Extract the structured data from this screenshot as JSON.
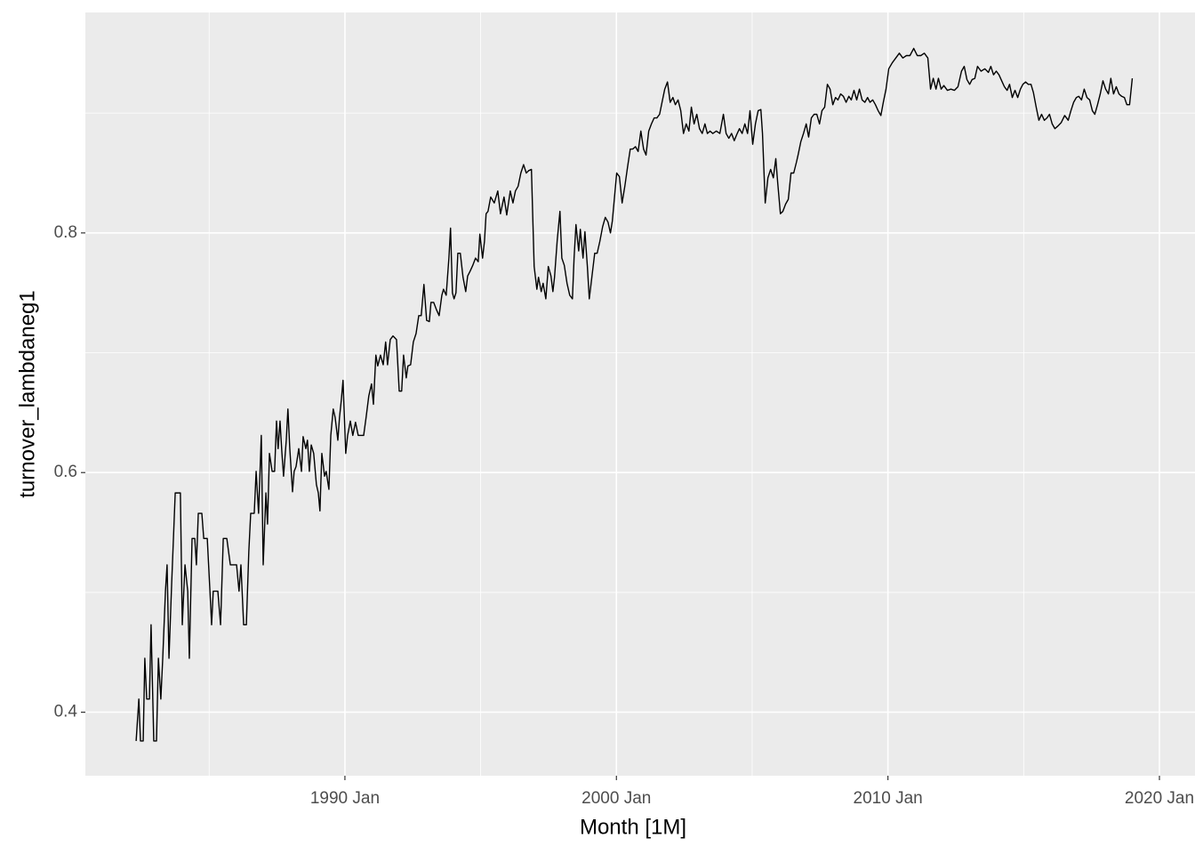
{
  "chart_data": {
    "type": "line",
    "x_label": "Month [1M]",
    "y_label": "turnover_lambdaneg1",
    "color": "#000000",
    "grid": true,
    "xlim": [
      1980.44,
      2021.31
    ],
    "ylim": [
      0.347,
      0.984
    ],
    "xticks": [
      {
        "value": 1990,
        "label": "1990 Jan"
      },
      {
        "value": 2000,
        "label": "2000 Jan"
      },
      {
        "value": 2010,
        "label": "2010 Jan"
      },
      {
        "value": 2020,
        "label": "2020 Jan"
      }
    ],
    "yticks": [
      0.4,
      0.6,
      0.8
    ],
    "x_minor_grid": [
      1985,
      1995,
      2005,
      2015
    ],
    "y_minor_grid": [
      0.5,
      0.7,
      0.9
    ],
    "x": [
      1982.31,
      1982.41,
      1982.47,
      1982.57,
      1982.63,
      1982.7,
      1982.8,
      1982.86,
      1982.96,
      1983.06,
      1983.13,
      1983.22,
      1983.29,
      1983.39,
      1983.45,
      1983.52,
      1983.62,
      1983.75,
      1983.94,
      1984.01,
      1984.11,
      1984.21,
      1984.27,
      1984.37,
      1984.47,
      1984.53,
      1984.6,
      1984.73,
      1984.8,
      1984.93,
      1985.02,
      1985.09,
      1985.15,
      1985.32,
      1985.42,
      1985.52,
      1985.65,
      1985.78,
      1986.01,
      1986.1,
      1986.17,
      1986.27,
      1986.37,
      1986.46,
      1986.53,
      1986.66,
      1986.73,
      1986.82,
      1986.92,
      1986.99,
      1987.09,
      1987.15,
      1987.22,
      1987.32,
      1987.41,
      1987.48,
      1987.54,
      1987.61,
      1987.68,
      1987.74,
      1987.84,
      1987.9,
      1987.97,
      1988.07,
      1988.13,
      1988.2,
      1988.3,
      1988.4,
      1988.46,
      1988.56,
      1988.62,
      1988.69,
      1988.76,
      1988.85,
      1988.95,
      1989.02,
      1989.08,
      1989.15,
      1989.25,
      1989.31,
      1989.41,
      1989.48,
      1989.57,
      1989.64,
      1989.74,
      1989.8,
      1989.87,
      1989.93,
      1990.03,
      1990.1,
      1990.2,
      1990.29,
      1990.39,
      1990.49,
      1990.69,
      1990.78,
      1990.88,
      1990.98,
      1991.05,
      1991.14,
      1991.21,
      1991.31,
      1991.41,
      1991.5,
      1991.57,
      1991.67,
      1991.77,
      1991.9,
      1992.0,
      1992.09,
      1992.16,
      1992.26,
      1992.32,
      1992.42,
      1992.52,
      1992.62,
      1992.72,
      1992.81,
      1992.91,
      1993.01,
      1993.11,
      1993.17,
      1993.27,
      1993.37,
      1993.47,
      1993.57,
      1993.63,
      1993.73,
      1993.83,
      1993.89,
      1993.96,
      1994.02,
      1994.09,
      1994.16,
      1994.25,
      1994.35,
      1994.45,
      1994.52,
      1994.61,
      1994.71,
      1994.81,
      1994.91,
      1994.97,
      1995.07,
      1995.14,
      1995.2,
      1995.27,
      1995.37,
      1995.5,
      1995.63,
      1995.73,
      1995.86,
      1995.96,
      1996.09,
      1996.19,
      1996.28,
      1996.38,
      1996.48,
      1996.58,
      1996.68,
      1996.77,
      1996.87,
      1996.97,
      1997.07,
      1997.13,
      1997.23,
      1997.3,
      1997.4,
      1997.49,
      1997.59,
      1997.66,
      1997.72,
      1997.82,
      1997.92,
      1997.99,
      1998.08,
      1998.18,
      1998.28,
      1998.38,
      1998.44,
      1998.51,
      1998.61,
      1998.67,
      1998.77,
      1998.84,
      1998.93,
      1999.0,
      1999.1,
      1999.2,
      1999.29,
      1999.39,
      1999.49,
      1999.59,
      1999.69,
      1999.78,
      1999.85,
      1999.95,
      2000.01,
      2000.11,
      2000.21,
      2000.31,
      2000.41,
      2000.51,
      2000.6,
      2000.7,
      2000.8,
      2000.9,
      2001.0,
      2001.09,
      2001.19,
      2001.29,
      2001.39,
      2001.49,
      2001.59,
      2001.68,
      2001.78,
      2001.88,
      2001.98,
      2002.08,
      2002.17,
      2002.27,
      2002.37,
      2002.47,
      2002.57,
      2002.67,
      2002.76,
      2002.86,
      2002.96,
      2003.06,
      2003.16,
      2003.26,
      2003.35,
      2003.45,
      2003.55,
      2003.68,
      2003.81,
      2003.94,
      2004.04,
      2004.14,
      2004.24,
      2004.34,
      2004.43,
      2004.53,
      2004.63,
      2004.73,
      2004.83,
      2004.92,
      2005.02,
      2005.12,
      2005.22,
      2005.32,
      2005.38,
      2005.48,
      2005.58,
      2005.68,
      2005.78,
      2005.87,
      2005.94,
      2006.04,
      2006.13,
      2006.23,
      2006.33,
      2006.43,
      2006.53,
      2006.63,
      2006.69,
      2006.79,
      2006.89,
      2006.99,
      2007.08,
      2007.18,
      2007.28,
      2007.38,
      2007.48,
      2007.57,
      2007.67,
      2007.77,
      2007.87,
      2007.97,
      2008.07,
      2008.16,
      2008.26,
      2008.36,
      2008.46,
      2008.56,
      2008.65,
      2008.75,
      2008.85,
      2008.95,
      2009.05,
      2009.15,
      2009.25,
      2009.34,
      2009.44,
      2009.54,
      2009.64,
      2009.74,
      2009.83,
      2009.93,
      2010.03,
      2010.16,
      2010.29,
      2010.42,
      2010.55,
      2010.68,
      2010.81,
      2010.95,
      2011.08,
      2011.21,
      2011.34,
      2011.47,
      2011.57,
      2011.67,
      2011.77,
      2011.86,
      2011.96,
      2012.06,
      2012.19,
      2012.32,
      2012.45,
      2012.58,
      2012.71,
      2012.81,
      2012.91,
      2013.01,
      2013.1,
      2013.2,
      2013.3,
      2013.43,
      2013.57,
      2013.7,
      2013.79,
      2013.89,
      2013.99,
      2014.09,
      2014.19,
      2014.29,
      2014.39,
      2014.48,
      2014.58,
      2014.68,
      2014.78,
      2014.88,
      2014.97,
      2015.07,
      2015.17,
      2015.27,
      2015.36,
      2015.46,
      2015.56,
      2015.66,
      2015.76,
      2015.86,
      2015.95,
      2016.05,
      2016.15,
      2016.25,
      2016.38,
      2016.51,
      2016.64,
      2016.74,
      2016.84,
      2016.94,
      2017.03,
      2017.13,
      2017.23,
      2017.33,
      2017.43,
      2017.53,
      2017.62,
      2017.72,
      2017.82,
      2017.92,
      2018.02,
      2018.12,
      2018.21,
      2018.31,
      2018.41,
      2018.51,
      2018.61,
      2018.71,
      2018.8,
      2018.9,
      2019.0
    ],
    "values": [
      0.376,
      0.411,
      0.376,
      0.376,
      0.445,
      0.411,
      0.411,
      0.473,
      0.376,
      0.376,
      0.445,
      0.411,
      0.445,
      0.501,
      0.523,
      0.445,
      0.508,
      0.583,
      0.583,
      0.473,
      0.523,
      0.501,
      0.445,
      0.545,
      0.545,
      0.523,
      0.566,
      0.566,
      0.545,
      0.545,
      0.505,
      0.473,
      0.501,
      0.501,
      0.473,
      0.545,
      0.545,
      0.523,
      0.523,
      0.501,
      0.523,
      0.473,
      0.473,
      0.534,
      0.566,
      0.566,
      0.601,
      0.566,
      0.631,
      0.523,
      0.583,
      0.557,
      0.616,
      0.601,
      0.601,
      0.643,
      0.62,
      0.643,
      0.616,
      0.597,
      0.627,
      0.653,
      0.62,
      0.584,
      0.601,
      0.605,
      0.62,
      0.601,
      0.63,
      0.62,
      0.627,
      0.601,
      0.623,
      0.616,
      0.59,
      0.583,
      0.568,
      0.616,
      0.597,
      0.601,
      0.586,
      0.631,
      0.653,
      0.646,
      0.627,
      0.646,
      0.661,
      0.677,
      0.616,
      0.631,
      0.643,
      0.631,
      0.642,
      0.631,
      0.631,
      0.646,
      0.664,
      0.674,
      0.657,
      0.698,
      0.689,
      0.698,
      0.69,
      0.709,
      0.69,
      0.711,
      0.714,
      0.711,
      0.668,
      0.668,
      0.698,
      0.679,
      0.689,
      0.69,
      0.709,
      0.716,
      0.731,
      0.731,
      0.757,
      0.727,
      0.726,
      0.742,
      0.742,
      0.736,
      0.731,
      0.748,
      0.753,
      0.748,
      0.779,
      0.804,
      0.75,
      0.745,
      0.75,
      0.783,
      0.783,
      0.763,
      0.751,
      0.764,
      0.768,
      0.773,
      0.779,
      0.776,
      0.799,
      0.779,
      0.793,
      0.816,
      0.818,
      0.83,
      0.825,
      0.835,
      0.816,
      0.83,
      0.815,
      0.835,
      0.825,
      0.835,
      0.839,
      0.85,
      0.857,
      0.85,
      0.852,
      0.853,
      0.772,
      0.753,
      0.763,
      0.751,
      0.758,
      0.745,
      0.772,
      0.764,
      0.751,
      0.763,
      0.794,
      0.818,
      0.779,
      0.773,
      0.758,
      0.748,
      0.745,
      0.779,
      0.807,
      0.785,
      0.803,
      0.779,
      0.801,
      0.772,
      0.745,
      0.764,
      0.783,
      0.783,
      0.793,
      0.805,
      0.813,
      0.809,
      0.8,
      0.81,
      0.835,
      0.85,
      0.847,
      0.825,
      0.839,
      0.855,
      0.87,
      0.87,
      0.872,
      0.868,
      0.885,
      0.87,
      0.865,
      0.885,
      0.891,
      0.896,
      0.896,
      0.899,
      0.909,
      0.92,
      0.926,
      0.909,
      0.913,
      0.907,
      0.911,
      0.902,
      0.883,
      0.891,
      0.885,
      0.905,
      0.891,
      0.899,
      0.887,
      0.883,
      0.891,
      0.883,
      0.885,
      0.883,
      0.885,
      0.883,
      0.899,
      0.883,
      0.879,
      0.883,
      0.877,
      0.882,
      0.887,
      0.883,
      0.891,
      0.883,
      0.902,
      0.874,
      0.891,
      0.902,
      0.903,
      0.883,
      0.825,
      0.846,
      0.853,
      0.846,
      0.862,
      0.842,
      0.816,
      0.818,
      0.824,
      0.828,
      0.85,
      0.85,
      0.859,
      0.865,
      0.876,
      0.883,
      0.891,
      0.88,
      0.896,
      0.899,
      0.899,
      0.891,
      0.902,
      0.905,
      0.924,
      0.92,
      0.907,
      0.913,
      0.911,
      0.916,
      0.914,
      0.909,
      0.914,
      0.911,
      0.919,
      0.911,
      0.92,
      0.911,
      0.909,
      0.913,
      0.909,
      0.911,
      0.907,
      0.902,
      0.898,
      0.909,
      0.92,
      0.937,
      0.942,
      0.946,
      0.95,
      0.946,
      0.948,
      0.948,
      0.954,
      0.948,
      0.948,
      0.95,
      0.946,
      0.92,
      0.929,
      0.92,
      0.929,
      0.92,
      0.923,
      0.919,
      0.92,
      0.919,
      0.922,
      0.935,
      0.939,
      0.928,
      0.924,
      0.928,
      0.929,
      0.939,
      0.935,
      0.937,
      0.934,
      0.939,
      0.932,
      0.935,
      0.932,
      0.927,
      0.922,
      0.919,
      0.924,
      0.913,
      0.919,
      0.913,
      0.92,
      0.924,
      0.926,
      0.924,
      0.924,
      0.917,
      0.905,
      0.894,
      0.899,
      0.894,
      0.896,
      0.899,
      0.891,
      0.887,
      0.889,
      0.892,
      0.898,
      0.894,
      0.902,
      0.909,
      0.913,
      0.914,
      0.911,
      0.92,
      0.913,
      0.911,
      0.902,
      0.899,
      0.907,
      0.916,
      0.927,
      0.92,
      0.916,
      0.929,
      0.916,
      0.922,
      0.916,
      0.914,
      0.913,
      0.907,
      0.907,
      0.929
    ]
  }
}
